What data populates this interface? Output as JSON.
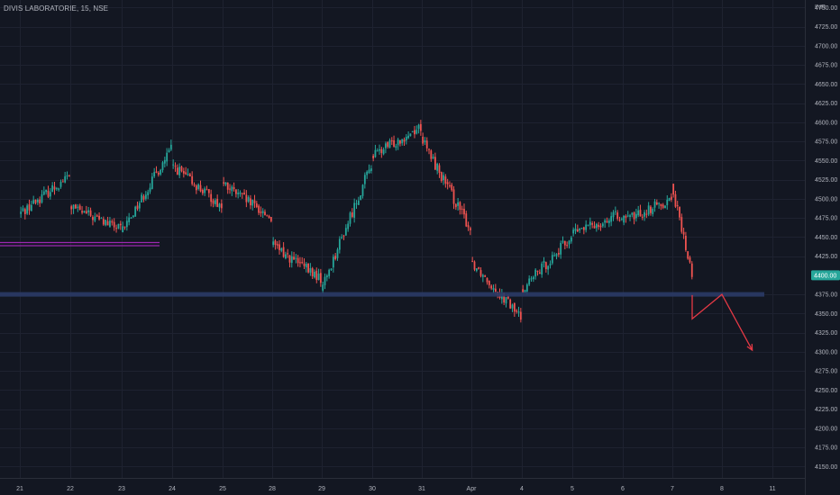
{
  "header": {
    "symbol_title": "DIVIS LABORATORIE, 15, NSE",
    "currency": "INR"
  },
  "price_scale": {
    "ticks": [
      "4150.00",
      "4175.00",
      "4200.00",
      "4225.00",
      "4250.00",
      "4275.00",
      "4300.00",
      "4325.00",
      "4350.00",
      "4375.00",
      "4425.00",
      "4450.00",
      "4475.00",
      "4500.00",
      "4525.00",
      "4550.00",
      "4575.00",
      "4600.00",
      "4625.00",
      "4650.00",
      "4675.00",
      "4700.00",
      "4725.00",
      "4750.00"
    ],
    "last_price_label": "4400.00"
  },
  "time_scale": {
    "labels": [
      "21",
      "22",
      "23",
      "24",
      "25",
      "28",
      "29",
      "30",
      "31",
      "Apr",
      "4",
      "5",
      "6",
      "7",
      "8",
      "11"
    ]
  },
  "colors": {
    "background": "#131722",
    "up": "#26a69a",
    "down": "#ef5350",
    "grid": "#1e2230",
    "axis_text": "#b2b5be",
    "support_line": "#2a3a66",
    "resistance_line": "#9c27b0",
    "projection": "#e53945",
    "last_price_badge": "#26a69a"
  },
  "drawings": {
    "support_level": 4375,
    "resistance_level": 4441,
    "projection_path": [
      {
        "day_index": 13.4,
        "price": 4374
      },
      {
        "day_index": 13.4,
        "price": 4343
      },
      {
        "day_index": 14.0,
        "price": 4375
      },
      {
        "day_index": 14.6,
        "price": 4302
      }
    ]
  },
  "chart_data": {
    "type": "candlestick",
    "title": "DIVIS LABORATORIE, 15, NSE",
    "xlabel": "",
    "ylabel": "",
    "ylim": [
      4135,
      4760
    ],
    "last_price": 4400,
    "x_labels": [
      "21",
      "22",
      "23",
      "24",
      "25",
      "28",
      "29",
      "30",
      "31",
      "Apr",
      "4",
      "5",
      "6",
      "7",
      "8",
      "11"
    ],
    "price_path": [
      {
        "day": "21",
        "start": 4480,
        "end": 4530
      },
      {
        "day": "22",
        "start": 4490,
        "end": 4460
      },
      {
        "day": "23",
        "start": 4455,
        "end": 4565
      },
      {
        "day": "24",
        "start": 4545,
        "end": 4490
      },
      {
        "day": "25",
        "start": 4520,
        "end": 4475
      },
      {
        "day": "28",
        "start": 4440,
        "end": 4395
      },
      {
        "day": "29",
        "start": 4380,
        "end": 4545
      },
      {
        "day": "30",
        "start": 4555,
        "end": 4595
      },
      {
        "day": "31",
        "start": 4580,
        "end": 4460
      },
      {
        "day": "Apr",
        "start": 4420,
        "end": 4345
      },
      {
        "day": "4",
        "start": 4380,
        "end": 4450
      },
      {
        "day": "5",
        "start": 4455,
        "end": 4480
      },
      {
        "day": "6",
        "start": 4470,
        "end": 4500
      },
      {
        "day": "7",
        "start": 4520,
        "end": 4400
      }
    ],
    "grid": true
  }
}
